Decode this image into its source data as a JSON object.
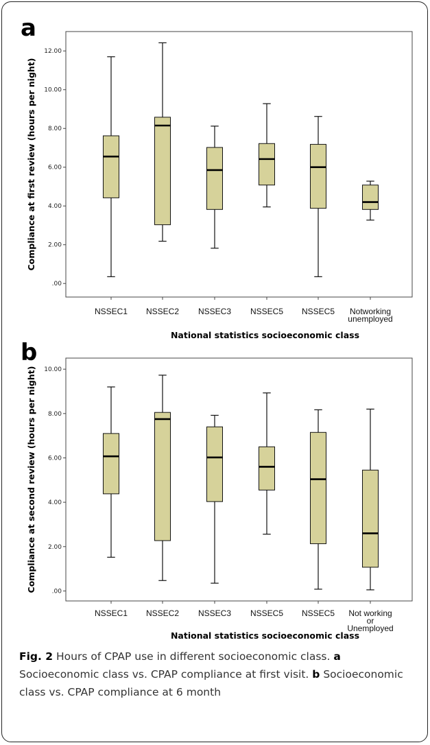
{
  "figure": {
    "panel_a_letter": "a",
    "panel_b_letter": "b",
    "caption": {
      "fig_label": "Fig. 2",
      "text_1": " Hours of CPAP use in different socioeconomic class. ",
      "letter_a": "a",
      "text_2": " Socioeconomic class vs. CPAP compliance at first visit. ",
      "letter_b": "b",
      "text_3": " Socioeconomic class vs. CPAP compliance at 6 month"
    }
  },
  "chart_data": [
    {
      "type": "box",
      "panel": "a",
      "categories": [
        "NSSEC1",
        "NSSEC2",
        "NSSEC3",
        "NSSEC5",
        "NSSEC5",
        "Notworking unemployed"
      ],
      "category_lines": [
        [
          "NSSEC1"
        ],
        [
          "NSSEC2"
        ],
        [
          "NSSEC3"
        ],
        [
          "NSSEC5"
        ],
        [
          "NSSEC5"
        ],
        [
          "Notworking",
          "unemployed"
        ]
      ],
      "boxes": [
        {
          "min": 0.35,
          "q1": 4.42,
          "median": 6.55,
          "q3": 7.62,
          "max": 11.7
        },
        {
          "min": 2.18,
          "q1": 3.03,
          "median": 8.15,
          "q3": 8.58,
          "max": 12.42
        },
        {
          "min": 1.82,
          "q1": 3.82,
          "median": 5.85,
          "q3": 7.02,
          "max": 8.12
        },
        {
          "min": 3.95,
          "q1": 5.08,
          "median": 6.42,
          "q3": 7.22,
          "max": 9.28
        },
        {
          "min": 0.35,
          "q1": 3.88,
          "median": 6.0,
          "q3": 7.18,
          "max": 8.62
        },
        {
          "min": 3.27,
          "q1": 3.82,
          "median": 4.2,
          "q3": 5.08,
          "max": 5.28
        }
      ],
      "xlabel": "National statistics socioeconomic class",
      "ylabel": "Compliance at first review (hours per night)",
      "ylim": [
        -0.7,
        13.0
      ],
      "yticks": [
        0,
        2,
        4,
        6,
        8,
        10,
        12
      ],
      "ytick_labels": [
        ".00",
        "2.00",
        "4.00",
        "6.00",
        "8.00",
        "10.00",
        "12.00"
      ],
      "box_color": "#d6d29a",
      "grid": false
    },
    {
      "type": "box",
      "panel": "b",
      "categories": [
        "NSSEC1",
        "NSSEC2",
        "NSSEC3",
        "NSSEC5",
        "NSSEC5",
        "Not working or Unemployed"
      ],
      "category_lines": [
        [
          "NSSEC1"
        ],
        [
          "NSSEC2"
        ],
        [
          "NSSEC3"
        ],
        [
          "NSSEC5"
        ],
        [
          "NSSEC5"
        ],
        [
          "Not working",
          "or",
          "Unemployed"
        ]
      ],
      "boxes": [
        {
          "min": 1.52,
          "q1": 4.38,
          "median": 6.07,
          "q3": 7.1,
          "max": 9.2
        },
        {
          "min": 0.47,
          "q1": 2.27,
          "median": 7.75,
          "q3": 8.05,
          "max": 9.73
        },
        {
          "min": 0.35,
          "q1": 4.03,
          "median": 6.02,
          "q3": 7.4,
          "max": 7.92
        },
        {
          "min": 2.56,
          "q1": 4.55,
          "median": 5.6,
          "q3": 6.5,
          "max": 8.93
        },
        {
          "min": 0.08,
          "q1": 2.13,
          "median": 5.04,
          "q3": 7.15,
          "max": 8.17
        },
        {
          "min": 0.05,
          "q1": 1.07,
          "median": 2.6,
          "q3": 5.45,
          "max": 8.2
        }
      ],
      "xlabel": "National statistics socioeconomic class",
      "ylabel": "Compliance at second review (hours per night)",
      "ylim": [
        -0.45,
        10.5
      ],
      "yticks": [
        0,
        2,
        4,
        6,
        8,
        10
      ],
      "ytick_labels": [
        ".00",
        "2.00",
        "4.00",
        "6.00",
        "8.00",
        "10.00"
      ],
      "box_color": "#d6d29a",
      "grid": false
    }
  ]
}
